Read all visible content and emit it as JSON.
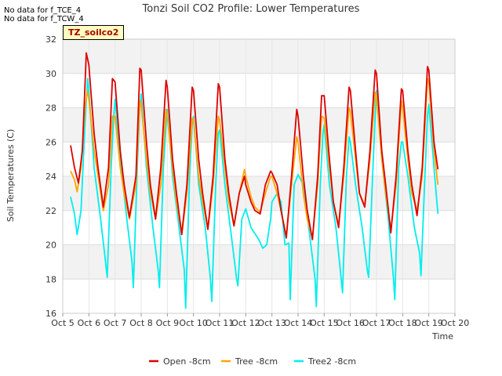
{
  "notes": [
    "No data for f_TCE_4",
    "No data for f_TCW_4"
  ],
  "badge": "TZ_soilco2",
  "chart_data": {
    "type": "line",
    "title": "Tonzi Soil CO2 Profile: Lower Temperatures",
    "xlabel": "Time",
    "ylabel": "Soil Temperatures (C)",
    "ylim": [
      16,
      32
    ],
    "yticks": [
      16,
      18,
      20,
      22,
      24,
      26,
      28,
      30,
      32
    ],
    "xlim": [
      5,
      20
    ],
    "xticks": [
      5,
      6,
      7,
      8,
      9,
      10,
      11,
      12,
      13,
      14,
      15,
      16,
      17,
      18,
      19,
      20
    ],
    "xtick_labels": [
      "Oct 5",
      "Oct 6",
      "Oct 7",
      "Oct 8",
      "Oct 9",
      "Oct 10",
      "Oct 11",
      "Oct 12",
      "Oct 13",
      "Oct 14",
      "Oct 15",
      "Oct 16",
      "Oct 17",
      "Oct 18",
      "Oct 19",
      "Oct 20"
    ],
    "grid": true,
    "legend_position": "bottom",
    "series": [
      {
        "name": "Open -8cm",
        "color": "#dd0000",
        "x": [
          5.3,
          5.45,
          5.6,
          5.75,
          5.9,
          6.0,
          6.2,
          6.35,
          6.55,
          6.75,
          6.9,
          7.0,
          7.2,
          7.35,
          7.55,
          7.8,
          7.95,
          8.0,
          8.2,
          8.35,
          8.55,
          8.75,
          8.95,
          9.0,
          9.2,
          9.35,
          9.55,
          9.75,
          9.95,
          10.0,
          10.2,
          10.35,
          10.55,
          10.75,
          10.95,
          11.0,
          11.2,
          11.35,
          11.55,
          11.75,
          11.95,
          12.0,
          12.2,
          12.35,
          12.55,
          12.75,
          12.95,
          13.0,
          13.2,
          13.35,
          13.55,
          13.75,
          13.95,
          14.0,
          14.2,
          14.35,
          14.55,
          14.75,
          14.9,
          15.0,
          15.2,
          15.35,
          15.55,
          15.75,
          15.95,
          16.0,
          16.2,
          16.35,
          16.55,
          16.75,
          16.95,
          17.0,
          17.2,
          17.35,
          17.55,
          17.75,
          17.95,
          18.0,
          18.2,
          18.35,
          18.55,
          18.75,
          18.95,
          19.0,
          19.2,
          19.35
        ],
        "y": [
          25.8,
          24.5,
          23.6,
          25.5,
          31.2,
          30.5,
          26.5,
          24.5,
          22.2,
          24.5,
          29.7,
          29.5,
          25.5,
          23.5,
          21.6,
          24.0,
          30.3,
          30.2,
          26.0,
          23.5,
          21.5,
          24.5,
          29.6,
          29.2,
          25.0,
          23.0,
          20.6,
          23.5,
          29.2,
          29.0,
          25.0,
          23.0,
          20.9,
          24.0,
          29.4,
          29.2,
          25.0,
          23.0,
          21.1,
          23.0,
          24.0,
          23.5,
          22.5,
          22.0,
          21.8,
          23.5,
          24.3,
          24.2,
          23.5,
          22.0,
          20.4,
          24.0,
          27.9,
          27.5,
          24.0,
          22.0,
          20.3,
          24.0,
          28.7,
          28.7,
          25.0,
          22.5,
          21.0,
          24.5,
          29.2,
          29.0,
          25.5,
          23.0,
          22.2,
          25.5,
          30.2,
          30.0,
          25.5,
          23.5,
          20.7,
          24.0,
          29.1,
          29.0,
          25.5,
          23.5,
          21.7,
          24.5,
          30.4,
          30.2,
          26.0,
          24.4
        ]
      },
      {
        "name": "Tree -8cm",
        "color": "#ffa500",
        "x": [
          5.3,
          5.45,
          5.55,
          5.7,
          5.85,
          5.95,
          6.0,
          6.2,
          6.4,
          6.55,
          6.75,
          6.9,
          7.0,
          7.2,
          7.35,
          7.55,
          7.8,
          7.95,
          8.0,
          8.2,
          8.35,
          8.55,
          8.75,
          8.95,
          9.0,
          9.2,
          9.35,
          9.55,
          9.75,
          9.95,
          10.0,
          10.2,
          10.35,
          10.55,
          10.75,
          10.95,
          11.0,
          11.2,
          11.35,
          11.55,
          11.75,
          11.95,
          12.0,
          12.2,
          12.35,
          12.55,
          12.75,
          12.95,
          13.0,
          13.2,
          13.35,
          13.55,
          13.75,
          13.95,
          14.0,
          14.2,
          14.35,
          14.55,
          14.75,
          14.9,
          15.0,
          15.2,
          15.35,
          15.55,
          15.75,
          15.95,
          16.0,
          16.2,
          16.35,
          16.55,
          16.75,
          16.95,
          17.0,
          17.2,
          17.35,
          17.55,
          17.75,
          17.95,
          18.0,
          18.2,
          18.35,
          18.55,
          18.75,
          18.95,
          19.0,
          19.2,
          19.35
        ],
        "y": [
          24.3,
          23.8,
          23.1,
          24.5,
          28.0,
          29.0,
          28.5,
          25.5,
          23.5,
          22.0,
          23.5,
          27.5,
          27.5,
          24.5,
          23.0,
          21.5,
          23.5,
          28.4,
          28.2,
          25.0,
          23.0,
          21.5,
          23.5,
          27.9,
          27.5,
          24.5,
          22.5,
          20.6,
          23.0,
          27.4,
          27.3,
          24.0,
          22.5,
          20.9,
          23.5,
          27.5,
          27.3,
          24.5,
          22.5,
          21.1,
          23.0,
          24.4,
          24.0,
          22.8,
          22.2,
          21.9,
          23.0,
          24.0,
          24.0,
          23.0,
          22.0,
          20.5,
          23.5,
          26.3,
          26.0,
          23.0,
          21.5,
          20.4,
          23.5,
          27.5,
          27.4,
          24.5,
          22.5,
          21.2,
          24.0,
          28.0,
          27.8,
          25.0,
          23.0,
          22.3,
          25.0,
          28.9,
          28.7,
          25.0,
          23.0,
          20.9,
          23.5,
          28.4,
          28.0,
          25.0,
          23.0,
          22.0,
          24.0,
          29.7,
          29.5,
          25.5,
          23.5
        ]
      },
      {
        "name": "Tree2 -8cm",
        "color": "#00eeee",
        "x": [
          5.3,
          5.45,
          5.55,
          5.7,
          5.85,
          5.95,
          6.0,
          6.2,
          6.45,
          6.6,
          6.7,
          6.85,
          6.95,
          7.0,
          7.2,
          7.45,
          7.65,
          7.7,
          7.85,
          7.95,
          8.0,
          8.2,
          8.45,
          8.65,
          8.7,
          8.85,
          8.95,
          9.0,
          9.2,
          9.45,
          9.65,
          9.7,
          9.85,
          9.95,
          10.0,
          10.2,
          10.45,
          10.65,
          10.7,
          10.85,
          10.95,
          11.0,
          11.2,
          11.45,
          11.65,
          11.7,
          11.85,
          12.0,
          12.2,
          12.5,
          12.65,
          12.8,
          12.95,
          13.0,
          13.2,
          13.35,
          13.5,
          13.65,
          13.7,
          13.85,
          14.0,
          14.2,
          14.45,
          14.65,
          14.7,
          14.85,
          14.95,
          15.0,
          15.2,
          15.45,
          15.65,
          15.7,
          15.85,
          15.95,
          16.0,
          16.2,
          16.45,
          16.65,
          16.7,
          16.85,
          16.95,
          17.0,
          17.2,
          17.45,
          17.65,
          17.7,
          17.85,
          17.95,
          18.0,
          18.2,
          18.45,
          18.65,
          18.7,
          18.85,
          18.95,
          19.0,
          19.2,
          19.35
        ],
        "y": [
          22.8,
          21.8,
          20.6,
          22.0,
          27.0,
          29.7,
          29.0,
          24.5,
          21.5,
          19.5,
          18.1,
          24.5,
          27.5,
          28.5,
          25.0,
          21.5,
          19.0,
          17.5,
          24.5,
          28.0,
          28.8,
          24.5,
          21.0,
          18.5,
          17.5,
          24.5,
          27.0,
          27.9,
          24.0,
          21.0,
          18.5,
          16.3,
          24.0,
          27.0,
          27.5,
          23.5,
          21.0,
          18.0,
          16.7,
          23.5,
          26.5,
          26.7,
          23.5,
          20.5,
          18.0,
          17.6,
          21.5,
          22.1,
          21.0,
          20.3,
          19.8,
          20.0,
          21.5,
          22.5,
          23.0,
          22.5,
          20.0,
          20.1,
          16.8,
          23.5,
          24.1,
          23.5,
          20.5,
          18.0,
          16.4,
          23.5,
          26.5,
          27.0,
          23.5,
          21.0,
          18.0,
          17.2,
          24.0,
          26.3,
          26.0,
          23.5,
          21.0,
          18.5,
          18.1,
          24.0,
          27.5,
          29.0,
          25.0,
          21.5,
          18.0,
          16.8,
          24.5,
          26.0,
          26.0,
          24.0,
          21.0,
          19.5,
          18.2,
          24.0,
          27.5,
          28.2,
          24.5,
          21.8
        ]
      }
    ]
  }
}
